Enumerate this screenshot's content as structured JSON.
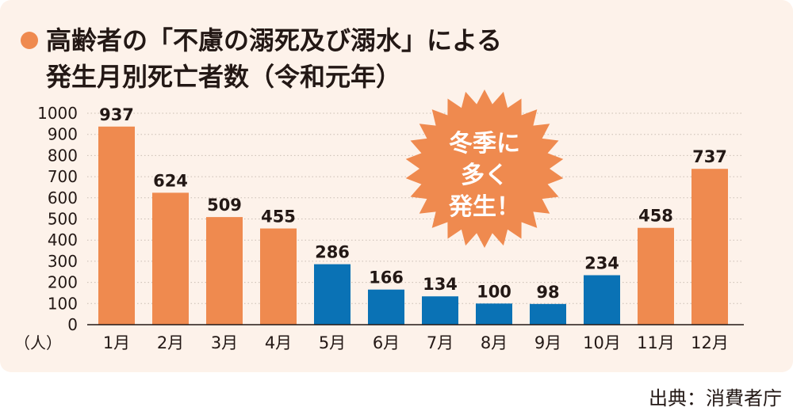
{
  "header": {
    "title_line1": "高齢者の「不慮の溺死及び溺水」による",
    "title_line2": "発生月別死亡者数（令和元年）"
  },
  "source": "出典：消費者庁",
  "callout": {
    "lines": [
      "冬季に",
      "多く",
      "発生！"
    ],
    "color": "#ef8a4f"
  },
  "colors": {
    "orange": "#ef8a4f",
    "blue": "#0a72b5",
    "background": "#fdf2ea"
  },
  "chart_data": {
    "type": "bar",
    "categories": [
      "1月",
      "2月",
      "3月",
      "4月",
      "5月",
      "6月",
      "7月",
      "8月",
      "9月",
      "10月",
      "11月",
      "12月"
    ],
    "values": [
      937,
      624,
      509,
      455,
      286,
      166,
      134,
      100,
      98,
      234,
      458,
      737
    ],
    "bar_colors": [
      "orange",
      "orange",
      "orange",
      "orange",
      "blue",
      "blue",
      "blue",
      "blue",
      "blue",
      "blue",
      "orange",
      "orange"
    ],
    "ylabel": "（人）",
    "ylim": [
      0,
      1000
    ],
    "yticks": [
      "0",
      "100",
      "200",
      "300",
      "400",
      "500",
      "600",
      "700",
      "800",
      "900",
      "1000"
    ],
    "grid": true
  }
}
